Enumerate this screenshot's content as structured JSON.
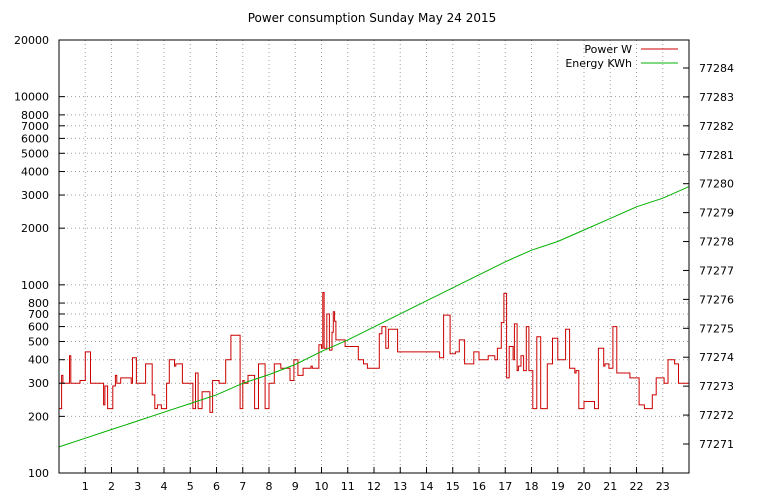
{
  "chart_data": {
    "type": "line",
    "title": "Power consumption Sunday May 24 2015",
    "xlabel": "",
    "ylabel": "",
    "xlim": [
      0,
      24
    ],
    "x_ticks": [
      1,
      2,
      3,
      4,
      5,
      6,
      7,
      8,
      9,
      10,
      11,
      12,
      13,
      14,
      15,
      16,
      17,
      18,
      19,
      20,
      21,
      22,
      23
    ],
    "y_scale": "log",
    "ylim": [
      100,
      20000
    ],
    "y_ticks": [
      100,
      200,
      300,
      400,
      500,
      600,
      700,
      800,
      1000,
      2000,
      3000,
      4000,
      5000,
      6000,
      7000,
      8000,
      10000,
      20000
    ],
    "y2_ticks": [
      77271,
      77272,
      77273,
      77274,
      77275,
      77276,
      77277,
      77278,
      77279,
      77280,
      77281,
      77282,
      77283,
      77284
    ],
    "legend_position": "top-right",
    "grid": true,
    "series": [
      {
        "name": "Power W",
        "color": "#cc0000",
        "axis": "left",
        "x": [
          0.0,
          0.1,
          0.15,
          0.4,
          0.45,
          0.6,
          0.8,
          1.0,
          1.2,
          1.25,
          1.6,
          1.7,
          1.75,
          1.85,
          2.05,
          2.15,
          2.2,
          2.35,
          2.75,
          2.8,
          2.95,
          3.1,
          3.3,
          3.55,
          3.65,
          3.75,
          3.9,
          4.1,
          4.2,
          4.4,
          4.45,
          4.7,
          4.75,
          5.1,
          5.2,
          5.3,
          5.45,
          5.75,
          5.85,
          6.1,
          6.35,
          6.5,
          6.55,
          6.9,
          7.0,
          7.05,
          7.2,
          7.45,
          7.6,
          7.85,
          8.0,
          8.2,
          8.45,
          8.8,
          8.95,
          9.1,
          9.3,
          9.6,
          9.65,
          9.9,
          10.0,
          10.05,
          10.1,
          10.2,
          10.3,
          10.4,
          10.45,
          10.5,
          10.55,
          10.9,
          11.4,
          11.6,
          11.75,
          12.2,
          12.3,
          12.45,
          12.55,
          12.9,
          13.3,
          13.6,
          14.0,
          14.5,
          14.65,
          14.9,
          15.1,
          15.25,
          15.45,
          15.8,
          16.0,
          16.35,
          16.6,
          16.7,
          16.85,
          16.95,
          17.05,
          17.15,
          17.3,
          17.35,
          17.45,
          17.5,
          17.6,
          17.7,
          17.8,
          17.9,
          18.05,
          18.2,
          18.35,
          18.6,
          18.7,
          18.8,
          19.0,
          19.2,
          19.3,
          19.45,
          19.65,
          19.7,
          19.8,
          19.85,
          20.0,
          20.4,
          20.55,
          20.75,
          20.8,
          20.95,
          21.1,
          21.25,
          21.5,
          21.75,
          22.1,
          22.3,
          22.6,
          22.75,
          23.05,
          23.2,
          23.45,
          23.6,
          24.0
        ],
        "values": [
          220,
          330,
          300,
          420,
          300,
          300,
          310,
          440,
          300,
          300,
          300,
          230,
          290,
          220,
          290,
          330,
          300,
          320,
          300,
          410,
          300,
          300,
          380,
          260,
          220,
          230,
          220,
          300,
          400,
          370,
          380,
          300,
          300,
          220,
          340,
          220,
          270,
          210,
          310,
          300,
          400,
          400,
          540,
          220,
          310,
          300,
          330,
          220,
          380,
          220,
          300,
          380,
          360,
          310,
          400,
          330,
          360,
          370,
          360,
          480,
          460,
          910,
          460,
          700,
          450,
          560,
          720,
          640,
          510,
          470,
          400,
          380,
          360,
          550,
          600,
          460,
          580,
          440,
          440,
          440,
          440,
          410,
          690,
          430,
          440,
          510,
          380,
          440,
          400,
          420,
          400,
          460,
          630,
          900,
          320,
          470,
          400,
          620,
          350,
          370,
          420,
          350,
          600,
          350,
          220,
          530,
          220,
          380,
          380,
          520,
          400,
          400,
          580,
          360,
          340,
          350,
          220,
          220,
          240,
          220,
          460,
          370,
          380,
          360,
          600,
          340,
          340,
          320,
          230,
          220,
          260,
          320,
          300,
          400,
          380,
          300,
          300
        ]
      },
      {
        "name": "Energy KWh",
        "color": "#00b000",
        "axis": "right",
        "x": [
          0,
          1,
          2,
          3,
          4,
          5,
          6,
          7,
          8,
          9,
          10,
          11,
          12,
          13,
          14,
          15,
          16,
          17,
          18,
          19,
          20,
          21,
          22,
          23,
          24
        ],
        "values": [
          77270.9,
          77271.2,
          77271.5,
          77271.8,
          77272.1,
          77272.4,
          77272.7,
          77273.1,
          77273.4,
          77273.75,
          77274.2,
          77274.6,
          77275.05,
          77275.5,
          77275.95,
          77276.4,
          77276.85,
          77277.3,
          77277.7,
          77278.0,
          77278.4,
          77278.8,
          77279.2,
          77279.5,
          77279.9
        ]
      }
    ]
  }
}
